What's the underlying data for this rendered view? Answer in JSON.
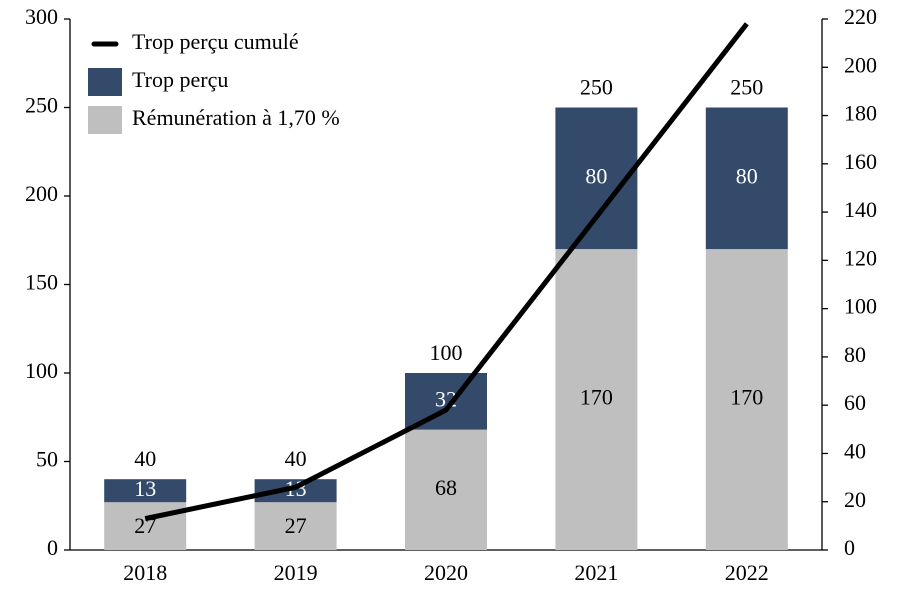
{
  "chart_data": {
    "type": "bar",
    "stacked": true,
    "categories": [
      "2018",
      "2019",
      "2020",
      "2021",
      "2022"
    ],
    "series": [
      {
        "name": "Rémunération à 1,70 %",
        "color": "#bfbfbf",
        "values": [
          27,
          27,
          68,
          170,
          170
        ]
      },
      {
        "name": "Trop perçu",
        "color": "#344a6b",
        "values": [
          13,
          13,
          32,
          80,
          80
        ]
      },
      {
        "name": "Trop perçu cumulé",
        "color": "#000000",
        "type": "line",
        "axis": "y2",
        "values": [
          13,
          26,
          58,
          138,
          218
        ]
      }
    ],
    "totals": [
      40,
      40,
      100,
      250,
      250
    ],
    "ylim": [
      0,
      300
    ],
    "yticks": [
      0,
      50,
      100,
      150,
      200,
      250,
      300
    ],
    "y2lim": [
      0,
      220
    ],
    "y2ticks": [
      0,
      20,
      40,
      60,
      80,
      100,
      120,
      140,
      160,
      180,
      200,
      220
    ],
    "legend": "top-left",
    "grid": false
  }
}
